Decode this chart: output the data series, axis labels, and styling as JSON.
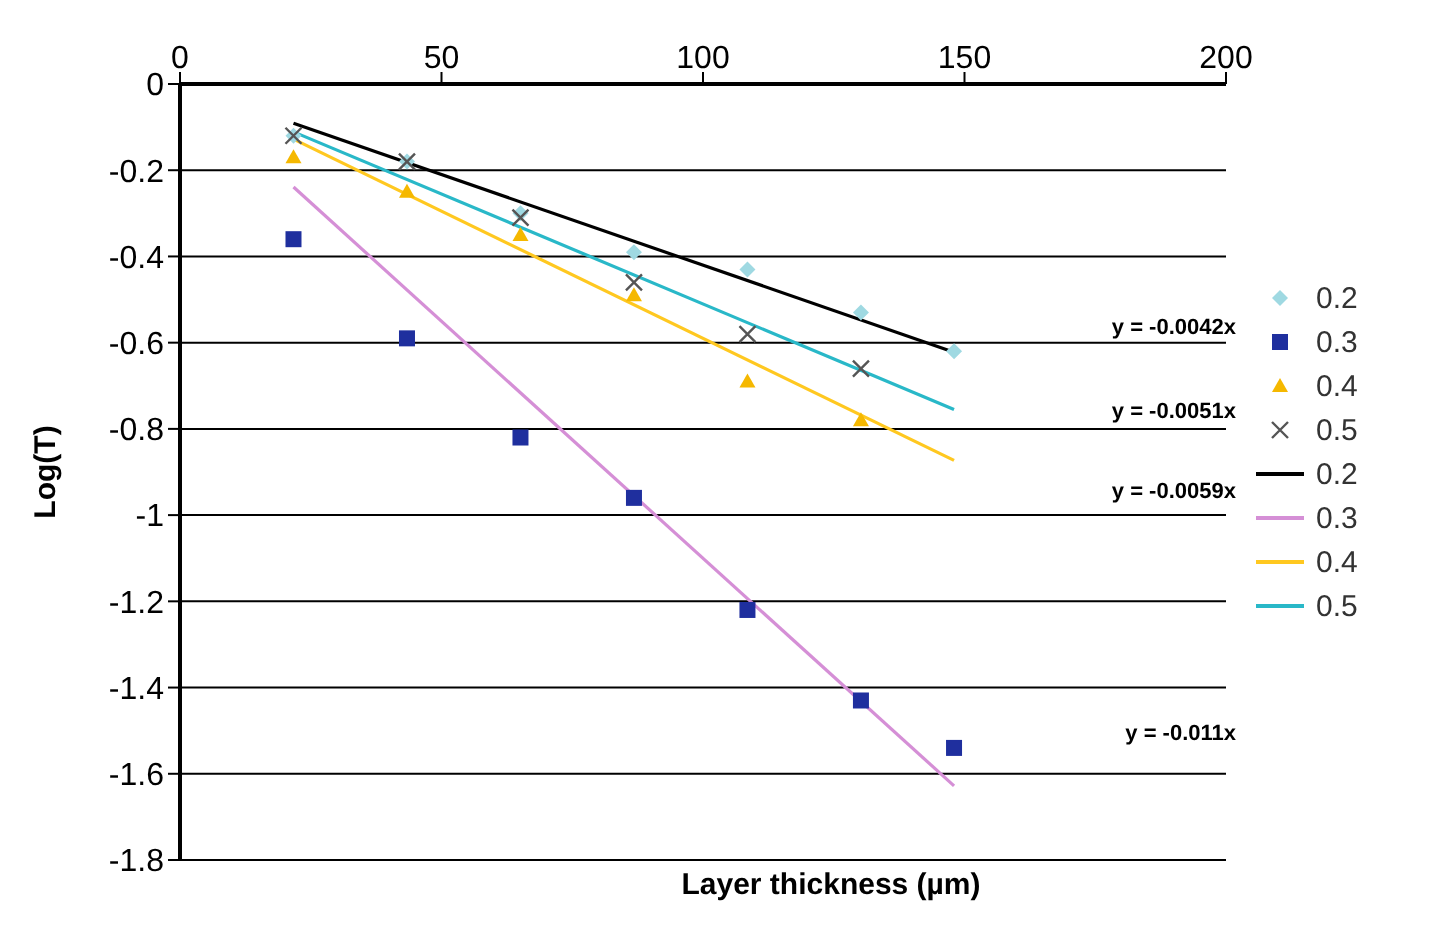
{
  "chart_data": {
    "type": "scatter",
    "xlabel": "Layer thickness (µm)",
    "ylabel": "Log(T)",
    "xlim": [
      0,
      200
    ],
    "xticks": [
      0,
      50,
      100,
      150,
      200
    ],
    "ylim": [
      -1.8,
      0
    ],
    "yticks": [
      0,
      -0.2,
      -0.4,
      -0.6,
      -0.8,
      -1,
      -1.2,
      -1.4,
      -1.6,
      -1.8
    ],
    "grid": "y",
    "legend": "right",
    "series": [
      {
        "name": "0.2",
        "marker": "diamond",
        "color": "#9fd9e2",
        "x": [
          21.7,
          43.4,
          65.1,
          86.8,
          108.5,
          130.2,
          148
        ],
        "values": [
          -0.12,
          -0.18,
          -0.3,
          -0.39,
          -0.43,
          -0.53,
          -0.62
        ]
      },
      {
        "name": "0.3",
        "marker": "square",
        "color": "#1f2f9e",
        "x": [
          21.7,
          43.4,
          65.1,
          86.8,
          108.5,
          130.2,
          148
        ],
        "values": [
          -0.36,
          -0.59,
          -0.82,
          -0.96,
          -1.22,
          -1.43,
          -1.54
        ]
      },
      {
        "name": "0.4",
        "marker": "triangle",
        "color": "#f5b800",
        "x": [
          21.7,
          43.4,
          65.1,
          86.8,
          108.5,
          130.2
        ],
        "values": [
          -0.17,
          -0.25,
          -0.35,
          -0.49,
          -0.69,
          -0.78
        ]
      },
      {
        "name": "0.5",
        "marker": "cross",
        "color": "#555555",
        "x": [
          21.7,
          43.4,
          65.1,
          86.8,
          108.5,
          130.2
        ],
        "values": [
          -0.12,
          -0.18,
          -0.31,
          -0.46,
          -0.58,
          -0.66
        ]
      },
      {
        "name": "0.2",
        "type": "line",
        "marker": "none",
        "color": "#000000",
        "x": [
          21.7,
          148
        ],
        "values": [
          -0.091,
          -0.622
        ]
      },
      {
        "name": "0.3",
        "type": "line",
        "marker": "none",
        "color": "#d58fd6",
        "x": [
          21.7,
          148
        ],
        "values": [
          -0.239,
          -1.628
        ]
      },
      {
        "name": "0.4",
        "type": "line",
        "marker": "none",
        "color": "#ffc820",
        "x": [
          21.7,
          148
        ],
        "values": [
          -0.128,
          -0.873
        ]
      },
      {
        "name": "0.5",
        "type": "line",
        "marker": "none",
        "color": "#29b8c8",
        "x": [
          21.7,
          148
        ],
        "values": [
          -0.111,
          -0.755
        ]
      }
    ],
    "annotations": [
      "y = -0.0042x",
      "y = -0.0051x",
      "y = -0.0059x",
      "y = -0.011x"
    ]
  }
}
